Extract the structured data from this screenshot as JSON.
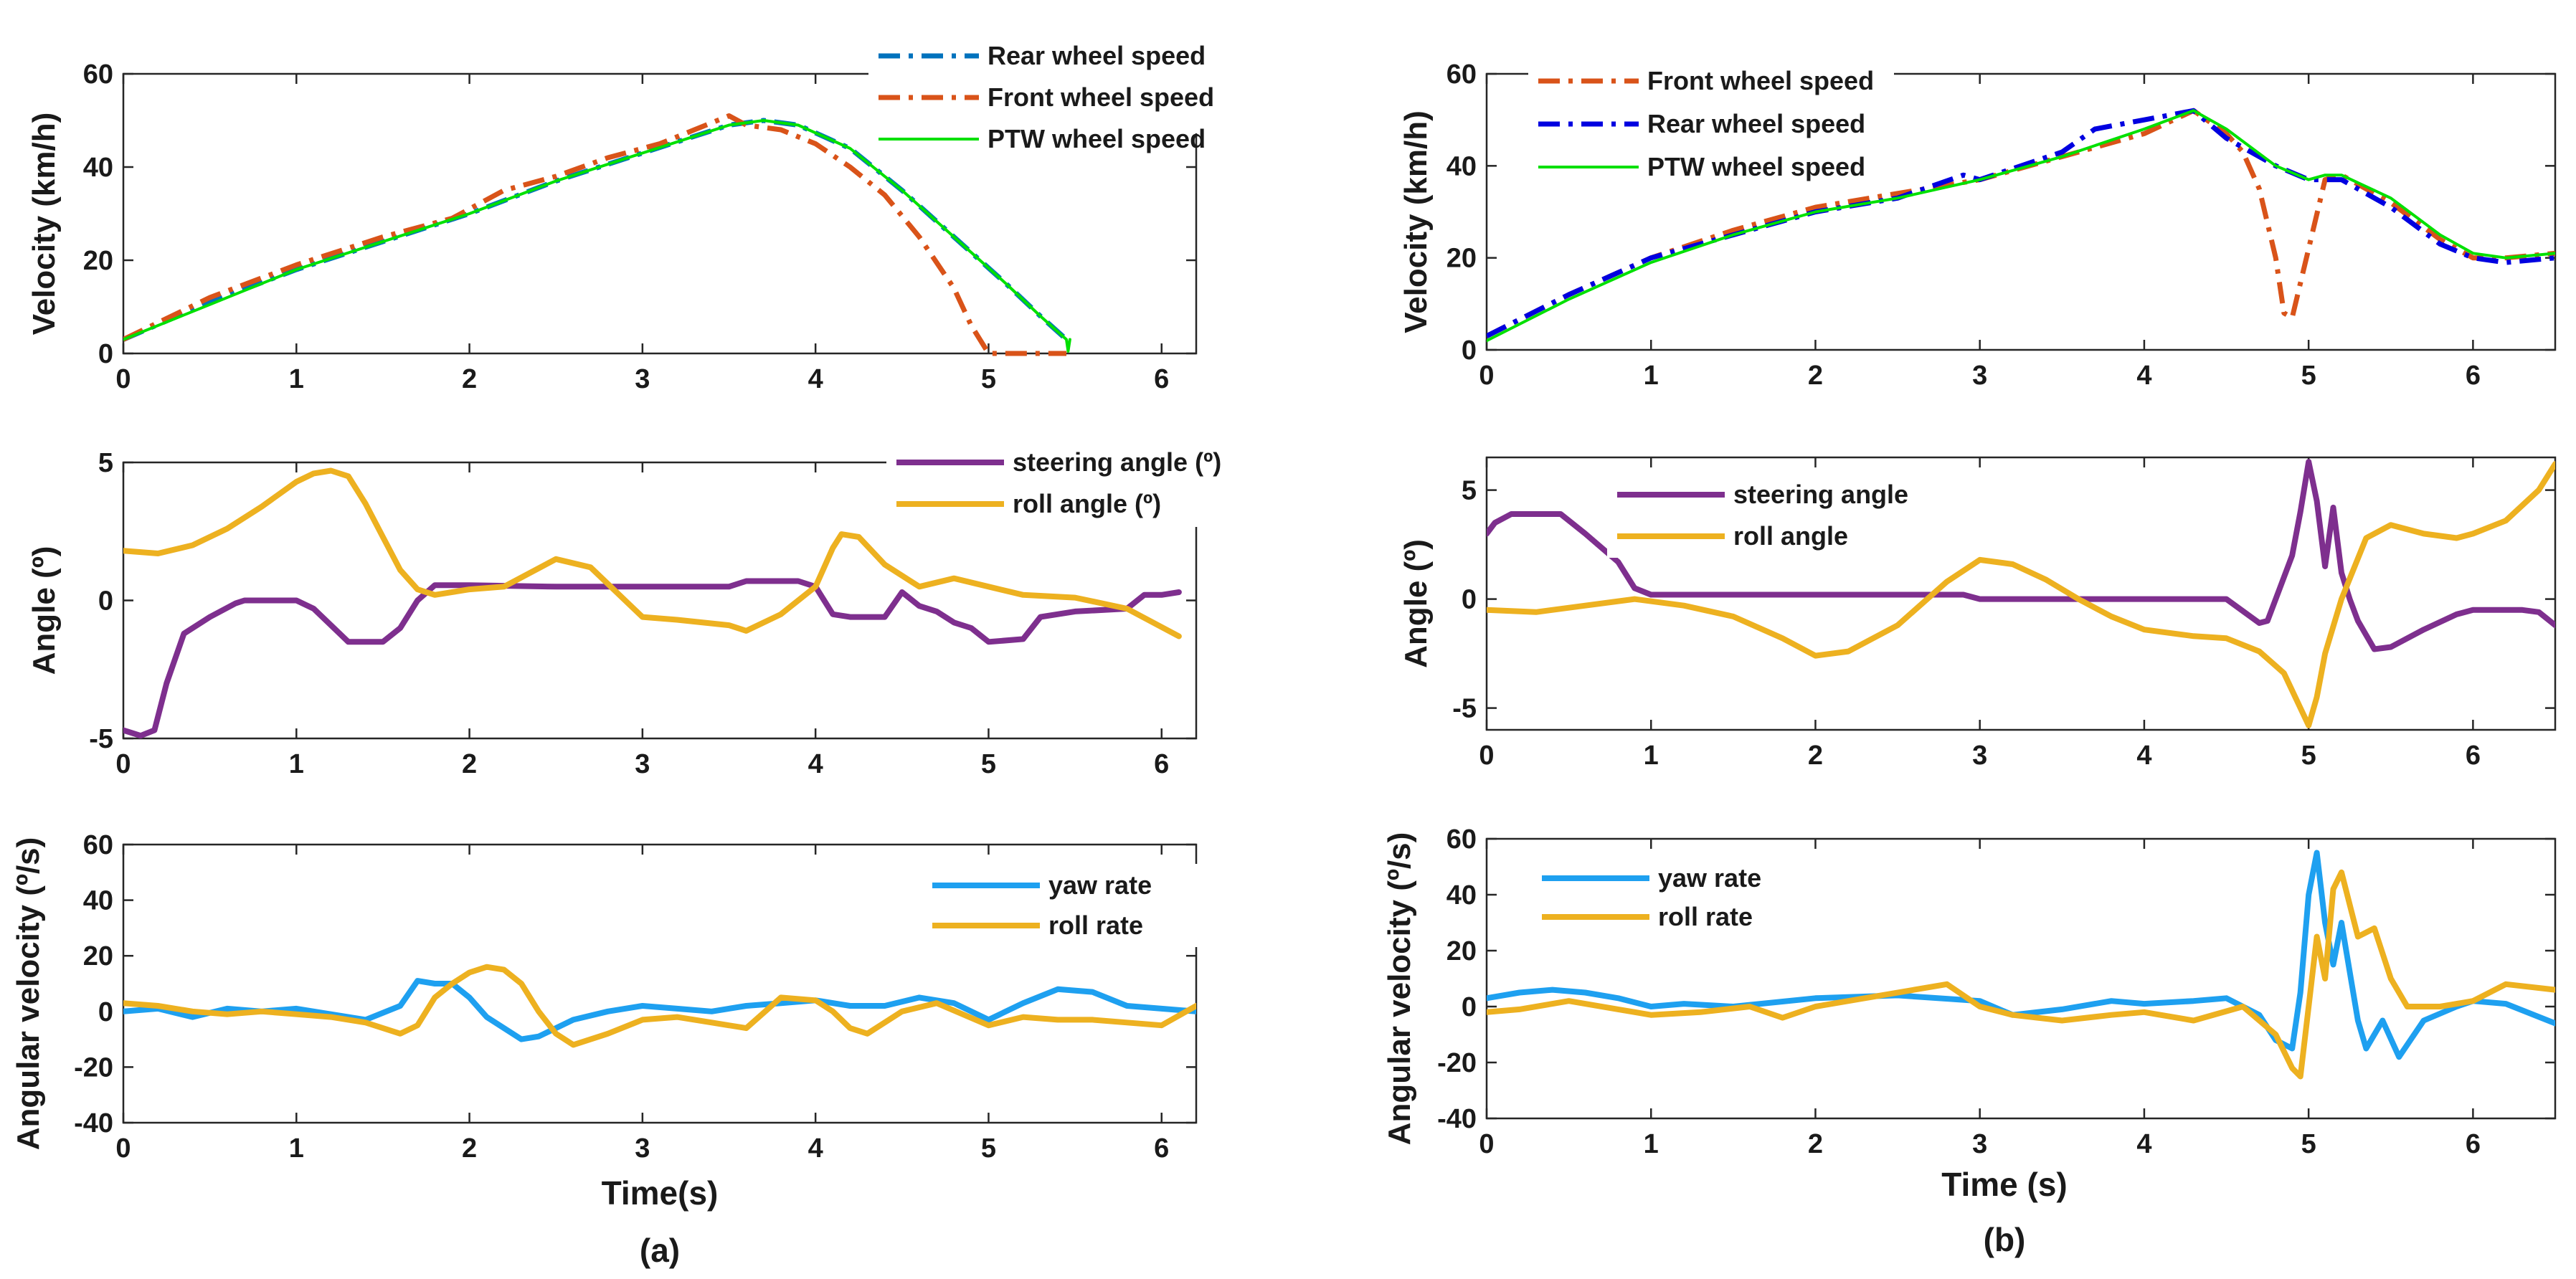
{
  "colors": {
    "rear_a": "#0072BD",
    "rear_b": "#0000E0",
    "front": "#D95319",
    "ptw": "#00E000",
    "steer": "#7E2F8E",
    "roll": "#EDB120",
    "yaw": "#1EA0F0"
  },
  "sublabels": {
    "a": "(a)",
    "b": "(b)"
  },
  "chart_data": [
    {
      "type": "line",
      "id": "a1",
      "ylabel": "Velocity (km/h)",
      "xlabel": "",
      "xlim": [
        0,
        6.2
      ],
      "ylim": [
        0,
        60
      ],
      "xticks": [
        0,
        1,
        2,
        3,
        4,
        5,
        6
      ],
      "yticks": [
        0,
        20,
        40,
        60
      ],
      "legend_position": "top-right",
      "series": [
        {
          "name": "Rear wheel speed",
          "color": "#0072BD",
          "style": "dashdot",
          "width": 7,
          "x": [
            0,
            0.5,
            1,
            1.5,
            2,
            2.5,
            3,
            3.5,
            3.7,
            3.9,
            4.2,
            4.5,
            4.8,
            5.1,
            5.3,
            5.45
          ],
          "y": [
            3,
            11,
            18,
            24,
            30,
            37,
            43,
            49,
            50,
            49,
            44,
            35,
            25,
            15,
            8,
            3
          ]
        },
        {
          "name": "Front wheel speed",
          "color": "#D95319",
          "style": "dashdot",
          "width": 7,
          "x": [
            0,
            0.5,
            1,
            1.5,
            1.9,
            2.0,
            2.2,
            2.5,
            2.8,
            3.1,
            3.3,
            3.5,
            3.6,
            3.8,
            4.0,
            4.2,
            4.4,
            4.6,
            4.8,
            4.9,
            5.0,
            5.1,
            5.45
          ],
          "y": [
            3,
            12,
            19,
            25,
            29,
            31,
            35,
            38,
            42,
            45,
            48,
            51,
            49,
            48,
            45,
            40,
            34,
            25,
            14,
            6,
            0,
            0,
            0
          ]
        },
        {
          "name": "PTW wheel speed",
          "color": "#00E000",
          "style": "solid",
          "width": 4,
          "x": [
            0,
            0.5,
            1,
            1.5,
            2,
            2.5,
            3,
            3.5,
            3.7,
            3.9,
            4.2,
            4.5,
            4.8,
            5.1,
            5.3,
            5.45,
            5.46,
            5.47
          ],
          "y": [
            3,
            10.5,
            18,
            24,
            30,
            37,
            43,
            49,
            50,
            49,
            44,
            35,
            25,
            15,
            8,
            3,
            0.5,
            3
          ]
        }
      ]
    },
    {
      "type": "line",
      "id": "a2",
      "ylabel": "Angle (º)",
      "xlabel": "",
      "xlim": [
        0,
        6.2
      ],
      "ylim": [
        -5,
        5
      ],
      "xticks": [
        0,
        1,
        2,
        3,
        4,
        5,
        6
      ],
      "yticks": [
        -5,
        0,
        5
      ],
      "legend_position": "top-right",
      "series": [
        {
          "name": "steering angle (º)",
          "color": "#7E2F8E",
          "style": "solid",
          "width": 8,
          "x": [
            0,
            0.1,
            0.18,
            0.25,
            0.35,
            0.5,
            0.65,
            0.7,
            1.0,
            1.1,
            1.3,
            1.5,
            1.6,
            1.7,
            1.8,
            2.0,
            2.5,
            3.0,
            3.5,
            3.6,
            3.9,
            4.0,
            4.1,
            4.2,
            4.4,
            4.5,
            4.6,
            4.7,
            4.8,
            4.9,
            5.0,
            5.2,
            5.3,
            5.5,
            5.8,
            5.9,
            6.0,
            6.1
          ],
          "y": [
            -4.7,
            -4.9,
            -4.7,
            -3.0,
            -1.2,
            -0.6,
            -0.1,
            0,
            0,
            -0.3,
            -1.5,
            -1.5,
            -1.0,
            0,
            0.55,
            0.55,
            0.5,
            0.5,
            0.5,
            0.7,
            0.7,
            0.5,
            -0.5,
            -0.6,
            -0.6,
            0.3,
            -0.2,
            -0.4,
            -0.8,
            -1.0,
            -1.5,
            -1.4,
            -0.6,
            -0.4,
            -0.3,
            0.2,
            0.2,
            0.3
          ]
        },
        {
          "name": "roll angle (º)",
          "color": "#EDB120",
          "style": "solid",
          "width": 8,
          "x": [
            0,
            0.2,
            0.4,
            0.6,
            0.8,
            1.0,
            1.1,
            1.2,
            1.3,
            1.4,
            1.5,
            1.6,
            1.7,
            1.8,
            2.0,
            2.2,
            2.5,
            2.7,
            2.9,
            3.0,
            3.2,
            3.5,
            3.6,
            3.8,
            4.0,
            4.1,
            4.15,
            4.25,
            4.4,
            4.6,
            4.8,
            5.0,
            5.2,
            5.5,
            5.8,
            6.1
          ],
          "y": [
            1.8,
            1.7,
            2.0,
            2.6,
            3.4,
            4.3,
            4.6,
            4.7,
            4.5,
            3.5,
            2.3,
            1.1,
            0.4,
            0.2,
            0.4,
            0.5,
            1.5,
            1.2,
            0,
            -0.6,
            -0.7,
            -0.9,
            -1.1,
            -0.5,
            0.5,
            1.9,
            2.4,
            2.3,
            1.3,
            0.5,
            0.8,
            0.5,
            0.2,
            0.1,
            -0.3,
            -1.3
          ]
        }
      ]
    },
    {
      "type": "line",
      "id": "a3",
      "ylabel": "Angular velocity (º/s)",
      "xlabel": "Time(s)",
      "xlim": [
        0,
        6.2
      ],
      "ylim": [
        -40,
        60
      ],
      "xticks": [
        0,
        1,
        2,
        3,
        4,
        5,
        6
      ],
      "yticks": [
        -40,
        -20,
        0,
        20,
        40,
        60
      ],
      "legend_position": "top-right",
      "series": [
        {
          "name": "yaw rate",
          "color": "#1EA0F0",
          "style": "solid",
          "width": 8,
          "x": [
            0,
            0.2,
            0.4,
            0.6,
            0.8,
            1.0,
            1.2,
            1.4,
            1.6,
            1.7,
            1.8,
            1.9,
            2.0,
            2.1,
            2.3,
            2.4,
            2.6,
            2.8,
            3.0,
            3.2,
            3.4,
            3.6,
            3.8,
            4.0,
            4.2,
            4.4,
            4.6,
            4.8,
            5.0,
            5.2,
            5.4,
            5.6,
            5.8,
            6.0,
            6.2
          ],
          "y": [
            0,
            1,
            -2,
            1,
            0,
            1,
            -1,
            -3,
            2,
            11,
            10,
            10,
            5,
            -2,
            -10,
            -9,
            -3,
            0,
            2,
            1,
            0,
            2,
            3,
            4,
            2,
            2,
            5,
            3,
            -3,
            3,
            8,
            7,
            2,
            1,
            0
          ]
        },
        {
          "name": "roll rate",
          "color": "#EDB120",
          "style": "solid",
          "width": 8,
          "x": [
            0,
            0.2,
            0.4,
            0.6,
            0.8,
            1.0,
            1.2,
            1.4,
            1.6,
            1.7,
            1.8,
            1.9,
            2.0,
            2.1,
            2.2,
            2.3,
            2.4,
            2.5,
            2.6,
            2.8,
            3.0,
            3.2,
            3.4,
            3.6,
            3.8,
            4.0,
            4.1,
            4.2,
            4.3,
            4.5,
            4.7,
            5.0,
            5.2,
            5.4,
            5.6,
            5.8,
            6.0,
            6.2
          ],
          "y": [
            3,
            2,
            0,
            -1,
            0,
            -1,
            -2,
            -4,
            -8,
            -5,
            5,
            10,
            14,
            16,
            15,
            10,
            0,
            -8,
            -12,
            -8,
            -3,
            -2,
            -4,
            -6,
            5,
            4,
            0,
            -6,
            -8,
            0,
            3,
            -5,
            -2,
            -3,
            -3,
            -4,
            -5,
            2
          ]
        }
      ]
    },
    {
      "type": "line",
      "id": "b1",
      "ylabel": "Velocity (km/h)",
      "xlabel": "",
      "xlim": [
        0,
        6.5
      ],
      "ylim": [
        0,
        60
      ],
      "xticks": [
        0,
        1,
        2,
        3,
        4,
        5,
        6
      ],
      "yticks": [
        0,
        20,
        40,
        60
      ],
      "legend_position": "top-left",
      "series": [
        {
          "name": "Front wheel speed",
          "color": "#D95319",
          "style": "dashdot",
          "width": 7,
          "x": [
            0,
            0.5,
            1,
            1.5,
            2,
            2.5,
            3,
            3.5,
            4,
            4.3,
            4.5,
            4.6,
            4.7,
            4.8,
            4.85,
            4.9,
            5.0,
            5.1,
            5.2,
            5.5,
            5.8,
            6.0,
            6.2,
            6.5
          ],
          "y": [
            3,
            12,
            20,
            26,
            31,
            34,
            37,
            42,
            47,
            52,
            47,
            43,
            35,
            20,
            8,
            7,
            22,
            37,
            38,
            32,
            24,
            20,
            20,
            21
          ]
        },
        {
          "name": "Rear wheel speed",
          "color": "#0000E0",
          "style": "dashdot",
          "width": 7,
          "x": [
            0,
            0.5,
            1,
            1.5,
            2,
            2.5,
            2.9,
            3.0,
            3.5,
            3.7,
            4.0,
            4.3,
            4.5,
            4.8,
            5.0,
            5.1,
            5.2,
            5.5,
            5.8,
            6.0,
            6.2,
            6.5
          ],
          "y": [
            3,
            12,
            20,
            25,
            30,
            33,
            38,
            37,
            43,
            48,
            50,
            52,
            46,
            40,
            37,
            37,
            37,
            31,
            23,
            20,
            19,
            20
          ]
        },
        {
          "name": "PTW wheel speed",
          "color": "#00E000",
          "style": "solid",
          "width": 4,
          "x": [
            0,
            0.5,
            1,
            1.5,
            2,
            2.5,
            3,
            3.5,
            4,
            4.3,
            4.5,
            4.8,
            5.0,
            5.1,
            5.2,
            5.5,
            5.8,
            6.0,
            6.2,
            6.5
          ],
          "y": [
            2,
            11,
            19,
            25,
            30,
            33,
            37,
            42,
            48,
            52,
            48,
            40,
            37,
            38,
            38,
            33,
            25,
            21,
            20,
            21
          ]
        }
      ]
    },
    {
      "type": "line",
      "id": "b2",
      "ylabel": "Angle (º)",
      "xlabel": "",
      "xlim": [
        0,
        6.5
      ],
      "ylim": [
        -6,
        6.5
      ],
      "xticks": [
        0,
        1,
        2,
        3,
        4,
        5,
        6
      ],
      "yticks": [
        -5,
        0,
        5
      ],
      "legend_position": "top-left",
      "series": [
        {
          "name": "steering angle",
          "color": "#7E2F8E",
          "style": "solid",
          "width": 8,
          "x": [
            0,
            0.05,
            0.15,
            0.3,
            0.45,
            0.6,
            0.8,
            0.9,
            1.0,
            1.5,
            2.0,
            2.5,
            2.9,
            3.0,
            3.5,
            4.0,
            4.5,
            4.7,
            4.75,
            4.8,
            4.9,
            4.95,
            5.0,
            5.05,
            5.1,
            5.15,
            5.2,
            5.25,
            5.3,
            5.4,
            5.5,
            5.7,
            5.9,
            6.0,
            6.3,
            6.4,
            6.5
          ],
          "y": [
            3.0,
            3.5,
            3.9,
            3.9,
            3.9,
            3.0,
            1.7,
            0.5,
            0.2,
            0.2,
            0.2,
            0.2,
            0.2,
            0,
            0,
            0,
            0,
            -1.1,
            -1.0,
            0,
            2.0,
            4.0,
            6.3,
            4.5,
            1.5,
            4.2,
            1.2,
            0,
            -1.0,
            -2.3,
            -2.2,
            -1.4,
            -0.7,
            -0.5,
            -0.5,
            -0.6,
            -1.2
          ]
        },
        {
          "name": "roll angle",
          "color": "#EDB120",
          "style": "solid",
          "width": 8,
          "x": [
            0,
            0.3,
            0.6,
            0.9,
            1.2,
            1.5,
            1.8,
            2.0,
            2.2,
            2.5,
            2.8,
            3.0,
            3.2,
            3.4,
            3.6,
            3.8,
            4.0,
            4.3,
            4.5,
            4.7,
            4.85,
            4.95,
            5.0,
            5.05,
            5.1,
            5.2,
            5.35,
            5.5,
            5.7,
            5.9,
            6.0,
            6.2,
            6.4,
            6.5
          ],
          "y": [
            -0.5,
            -0.6,
            -0.3,
            0,
            -0.3,
            -0.8,
            -1.8,
            -2.6,
            -2.4,
            -1.2,
            0.8,
            1.8,
            1.6,
            0.9,
            0,
            -0.8,
            -1.4,
            -1.7,
            -1.8,
            -2.4,
            -3.4,
            -5.0,
            -5.8,
            -4.5,
            -2.5,
            0,
            2.8,
            3.4,
            3.0,
            2.8,
            3.0,
            3.6,
            5.0,
            6.2
          ]
        }
      ]
    },
    {
      "type": "line",
      "id": "b3",
      "ylabel": "Angular velocity (º/s)",
      "xlabel": "Time (s)",
      "xlim": [
        0,
        6.5
      ],
      "ylim": [
        -40,
        60
      ],
      "xticks": [
        0,
        1,
        2,
        3,
        4,
        5,
        6
      ],
      "yticks": [
        -40,
        -20,
        0,
        20,
        40,
        60
      ],
      "legend_position": "top-left",
      "series": [
        {
          "name": "yaw rate",
          "color": "#1EA0F0",
          "style": "solid",
          "width": 8,
          "x": [
            0,
            0.2,
            0.4,
            0.6,
            0.8,
            1.0,
            1.2,
            1.5,
            2.0,
            2.5,
            3.0,
            3.2,
            3.5,
            3.8,
            4.0,
            4.3,
            4.5,
            4.7,
            4.8,
            4.9,
            4.95,
            5.0,
            5.05,
            5.1,
            5.15,
            5.2,
            5.3,
            5.35,
            5.45,
            5.55,
            5.7,
            5.9,
            6.0,
            6.2,
            6.5
          ],
          "y": [
            3,
            5,
            6,
            5,
            3,
            0,
            1,
            0,
            3,
            4,
            2,
            -3,
            -1,
            2,
            1,
            2,
            3,
            -3,
            -12,
            -15,
            5,
            40,
            55,
            30,
            15,
            30,
            -5,
            -15,
            -5,
            -18,
            -5,
            0,
            2,
            1,
            -6
          ]
        },
        {
          "name": "roll rate",
          "color": "#EDB120",
          "style": "solid",
          "width": 8,
          "x": [
            0,
            0.2,
            0.5,
            0.8,
            1.0,
            1.3,
            1.6,
            1.8,
            2.0,
            2.3,
            2.6,
            2.8,
            3.0,
            3.2,
            3.5,
            3.8,
            4.0,
            4.3,
            4.6,
            4.8,
            4.9,
            4.95,
            5.0,
            5.05,
            5.1,
            5.15,
            5.2,
            5.3,
            5.4,
            5.5,
            5.6,
            5.8,
            6.0,
            6.2,
            6.5
          ],
          "y": [
            -2,
            -1,
            2,
            -1,
            -3,
            -2,
            0,
            -4,
            0,
            3,
            6,
            8,
            0,
            -3,
            -5,
            -3,
            -2,
            -5,
            0,
            -10,
            -22,
            -25,
            0,
            25,
            10,
            42,
            48,
            25,
            28,
            10,
            0,
            0,
            2,
            8,
            6
          ]
        }
      ]
    }
  ]
}
